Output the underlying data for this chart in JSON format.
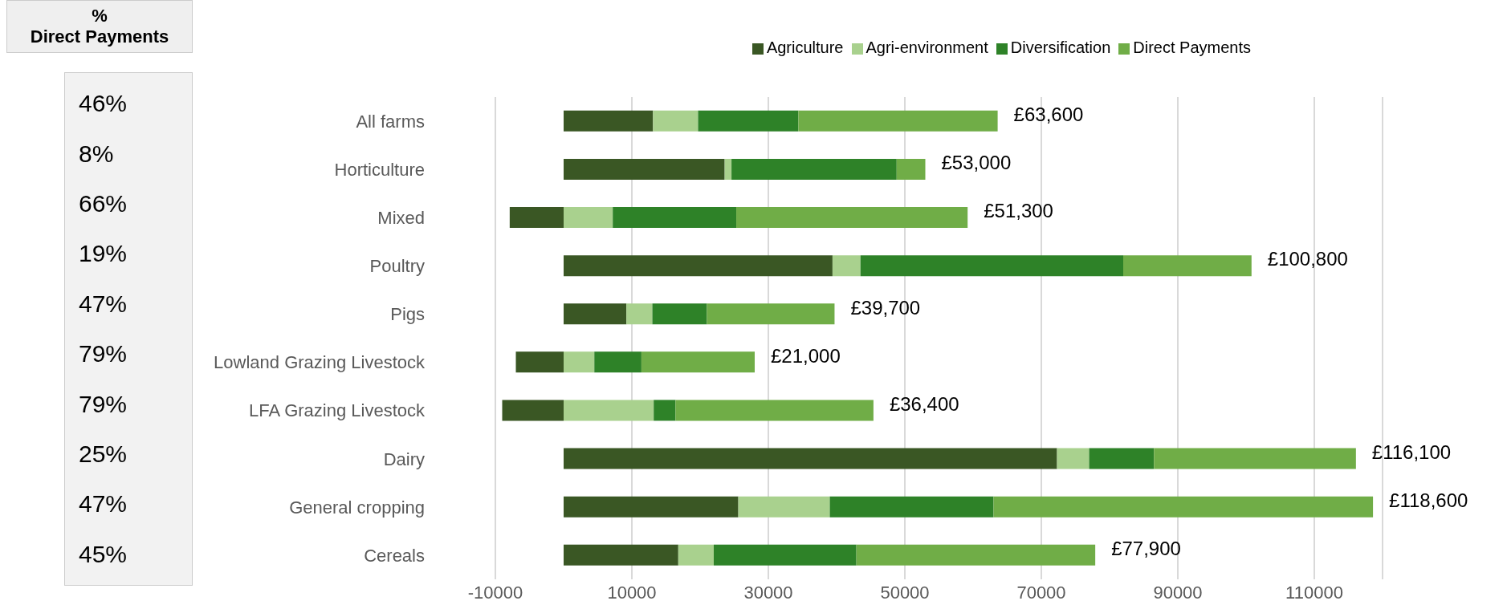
{
  "chart_data": {
    "type": "bar",
    "orientation": "horizontal",
    "stacked": true,
    "categories": [
      "All farms",
      "Horticulture",
      "Mixed",
      "Poultry",
      "Pigs",
      "Lowland Grazing Livestock",
      "LFA Grazing Livestock",
      "Dairy",
      "General cropping",
      "Cereals"
    ],
    "series": [
      {
        "name": "Agriculture",
        "color": "#3a5724",
        "values": [
          13100,
          23600,
          -7900,
          39400,
          9200,
          -7000,
          -9000,
          72300,
          25600,
          16800
        ]
      },
      {
        "name": "Agri-environment",
        "color": "#a9d18e",
        "values": [
          6600,
          1000,
          7200,
          4100,
          3800,
          4500,
          13200,
          4700,
          13400,
          5200
        ]
      },
      {
        "name": "Diversification",
        "color": "#2e8228",
        "values": [
          14700,
          24200,
          18100,
          38500,
          8000,
          6900,
          3200,
          9500,
          24000,
          20900
        ]
      },
      {
        "name": "Direct Payments",
        "color": "#70ad47",
        "values": [
          29200,
          4200,
          33900,
          18800,
          18700,
          16600,
          29000,
          29600,
          55600,
          35000
        ]
      }
    ],
    "totals": [
      "£63,600",
      "£53,000",
      "£51,300",
      "£100,800",
      "£39,700",
      "£21,000",
      "£36,400",
      "£116,100",
      "£118,600",
      "£77,900"
    ],
    "xlim": [
      -10000,
      120000
    ],
    "xticks": [
      -10000,
      10000,
      30000,
      50000,
      70000,
      90000,
      110000
    ],
    "grid": "x",
    "legend": "top right",
    "annotations": [
      "% Direct Payments",
      "46%",
      "8%",
      "66%",
      "19%",
      "47%",
      "79%",
      "79%",
      "25%",
      "47%",
      "45%"
    ]
  }
}
